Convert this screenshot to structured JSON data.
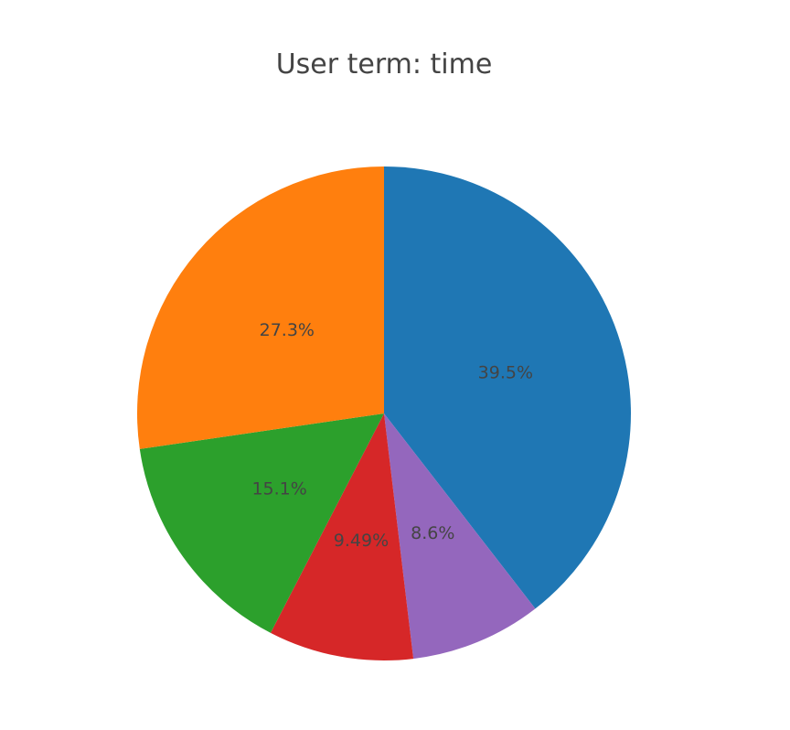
{
  "chart_data": {
    "type": "pie",
    "title": "User term: time",
    "sort": "descending",
    "direction": "clockwise",
    "start_angle_deg": 0,
    "slices": [
      {
        "label": "39.5%",
        "value": 39.5,
        "color": "#1f77b4"
      },
      {
        "label": "8.6%",
        "value": 8.6,
        "color": "#9467bd"
      },
      {
        "label": "9.49%",
        "value": 9.49,
        "color": "#d62728"
      },
      {
        "label": "15.1%",
        "value": 15.1,
        "color": "#2ca02c"
      },
      {
        "label": "27.3%",
        "value": 27.3,
        "color": "#ff7f0e"
      }
    ],
    "legend": "none"
  }
}
